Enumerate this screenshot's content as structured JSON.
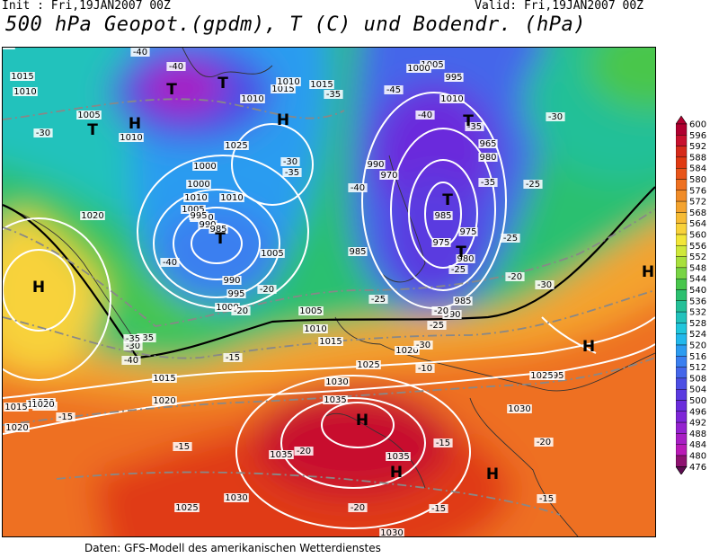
{
  "header": {
    "init": "Init : Fri,19JAN2007 00Z",
    "valid": "Valid: Fri,19JAN2007 00Z",
    "title": "500 hPa Geopot.(gpdm), T (C) und Bodendr. (hPa)"
  },
  "footer": "Daten: GFS-Modell des amerikanischen Wetterdienstes",
  "legend": {
    "values": [
      "600",
      "596",
      "592",
      "588",
      "584",
      "580",
      "576",
      "572",
      "568",
      "564",
      "560",
      "556",
      "552",
      "548",
      "544",
      "540",
      "536",
      "532",
      "528",
      "524",
      "520",
      "516",
      "512",
      "508",
      "504",
      "500",
      "496",
      "492",
      "488",
      "484",
      "480",
      "476"
    ],
    "colors": [
      "#b00030",
      "#c8102e",
      "#d62a1a",
      "#e03a12",
      "#e8551a",
      "#ee7020",
      "#f08c28",
      "#f4a32e",
      "#f6bb34",
      "#f8d23a",
      "#f2e638",
      "#cfe83a",
      "#a8e03c",
      "#78d444",
      "#48c64c",
      "#2cc070",
      "#24c098",
      "#22c2bc",
      "#20c6dc",
      "#22b8ec",
      "#2c9cf0",
      "#3a7ff0",
      "#4466ea",
      "#4c4ee4",
      "#5a3ae0",
      "#6a2cdc",
      "#7e26d8",
      "#9422d0",
      "#a81ec4",
      "#ba1ab6",
      "#8e1270",
      "#5c0c50"
    ]
  },
  "map": {
    "pressure_labels": [
      "1020",
      "1015",
      "1010",
      "1005",
      "1000",
      "1000",
      "1005",
      "1010",
      "1015",
      "1010",
      "1010",
      "1025",
      "1010",
      "1015",
      "1010",
      "1005",
      "1000",
      "995",
      "990",
      "985",
      "985",
      "990",
      "995",
      "1000",
      "1005",
      "1010",
      "1015",
      "1020",
      "1025",
      "1030",
      "1035",
      "1035",
      "1030",
      "1025",
      "1020",
      "1015",
      "1035",
      "1030",
      "1035",
      "1030",
      "1025",
      "1020",
      "1015",
      "1010",
      "1005",
      "1000",
      "995",
      "990",
      "985",
      "975",
      "970",
      "965",
      "980",
      "975",
      "980",
      "985",
      "990",
      "995",
      "1020",
      "1030",
      "1025",
      "1020"
    ],
    "temperature_labels": [
      "-40",
      "-40",
      "-35",
      "-30",
      "-30",
      "-35",
      "-40",
      "-45",
      "-40",
      "-35",
      "-40",
      "-35",
      "-30",
      "-25",
      "-20",
      "-25",
      "-30",
      "-25",
      "-20",
      "-20",
      "-25",
      "-30",
      "-35",
      "-40",
      "-30",
      "-35",
      "-25",
      "-20",
      "-15",
      "-15",
      "-10",
      "-15",
      "-15",
      "-20",
      "-15",
      "-15",
      "-20",
      "-20"
    ],
    "systems": [
      {
        "t": "T"
      },
      {
        "t": "T"
      },
      {
        "t": "H"
      },
      {
        "t": "T"
      },
      {
        "t": "H"
      },
      {
        "t": "T"
      },
      {
        "t": "T"
      },
      {
        "t": "T"
      },
      {
        "t": "T"
      },
      {
        "t": "H"
      },
      {
        "t": "H"
      },
      {
        "t": "H"
      },
      {
        "t": "H"
      },
      {
        "t": "H"
      },
      {
        "t": "H"
      }
    ]
  }
}
